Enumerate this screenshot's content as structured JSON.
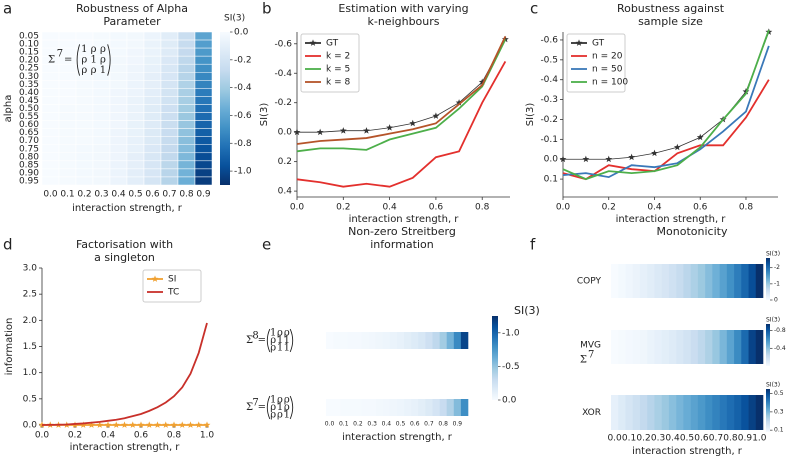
{
  "chart_data": [
    {
      "type": "heatmap",
      "panel": "a",
      "title": [
        "Robustness of Alpha",
        "Parameter"
      ],
      "xlabel": "interaction strength, r",
      "ylabel": "alpha",
      "categories": [
        "0.0",
        "0.1",
        "0.2",
        "0.3",
        "0.4",
        "0.5",
        "0.6",
        "0.7",
        "0.8",
        "0.9"
      ],
      "y_categories": [
        "0.05",
        "0.10",
        "0.15",
        "0.20",
        "0.25",
        "0.30",
        "0.35",
        "0.40",
        "0.45",
        "0.50",
        "0.55",
        "0.60",
        "0.65",
        "0.70",
        "0.75",
        "0.80",
        "0.85",
        "0.90",
        "0.95"
      ],
      "values": [
        [
          0,
          0,
          0,
          -0.01,
          -0.02,
          -0.03,
          -0.06,
          -0.12,
          -0.25,
          -0.6
        ],
        [
          0,
          0,
          0,
          -0.01,
          -0.02,
          -0.03,
          -0.07,
          -0.13,
          -0.27,
          -0.63
        ],
        [
          0,
          0,
          0,
          -0.01,
          -0.02,
          -0.04,
          -0.07,
          -0.14,
          -0.28,
          -0.65
        ],
        [
          0,
          0,
          0,
          -0.01,
          -0.03,
          -0.04,
          -0.08,
          -0.16,
          -0.3,
          -0.68
        ],
        [
          0,
          0,
          0,
          -0.01,
          -0.03,
          -0.05,
          -0.09,
          -0.17,
          -0.32,
          -0.7
        ],
        [
          0,
          0,
          -0.01,
          -0.02,
          -0.03,
          -0.05,
          -0.1,
          -0.18,
          -0.33,
          -0.73
        ],
        [
          0,
          0,
          -0.01,
          -0.02,
          -0.03,
          -0.06,
          -0.1,
          -0.19,
          -0.35,
          -0.75
        ],
        [
          0,
          0,
          -0.01,
          -0.02,
          -0.04,
          -0.06,
          -0.11,
          -0.2,
          -0.37,
          -0.78
        ],
        [
          0,
          0,
          -0.01,
          -0.02,
          -0.04,
          -0.07,
          -0.12,
          -0.21,
          -0.38,
          -0.8
        ],
        [
          0,
          -0.01,
          -0.01,
          -0.02,
          -0.04,
          -0.07,
          -0.13,
          -0.23,
          -0.4,
          -0.83
        ],
        [
          0,
          -0.01,
          -0.01,
          -0.02,
          -0.04,
          -0.07,
          -0.13,
          -0.24,
          -0.42,
          -0.85
        ],
        [
          0,
          -0.01,
          -0.01,
          -0.02,
          -0.04,
          -0.08,
          -0.14,
          -0.25,
          -0.43,
          -0.88
        ],
        [
          0,
          -0.01,
          -0.01,
          -0.02,
          -0.05,
          -0.08,
          -0.15,
          -0.26,
          -0.45,
          -0.9
        ],
        [
          0,
          -0.01,
          -0.01,
          -0.02,
          -0.05,
          -0.09,
          -0.15,
          -0.27,
          -0.47,
          -0.93
        ],
        [
          0,
          -0.01,
          -0.02,
          -0.03,
          -0.05,
          -0.09,
          -0.16,
          -0.28,
          -0.48,
          -0.95
        ],
        [
          0,
          -0.01,
          -0.02,
          -0.03,
          -0.05,
          -0.1,
          -0.17,
          -0.29,
          -0.5,
          -0.98
        ],
        [
          0,
          -0.01,
          -0.02,
          -0.03,
          -0.06,
          -0.1,
          -0.18,
          -0.31,
          -0.52,
          -1.0
        ],
        [
          0,
          -0.01,
          -0.02,
          -0.03,
          -0.06,
          -0.11,
          -0.18,
          -0.32,
          -0.53,
          -1.03
        ],
        [
          0,
          -0.01,
          -0.02,
          -0.03,
          -0.06,
          -0.11,
          -0.19,
          -0.33,
          -0.55,
          -1.05
        ]
      ],
      "clim": [
        0,
        -1.1
      ],
      "colorbar_dark": "bottom",
      "colorbar_label": "SI(3)",
      "colorbar_ticks": [
        {
          "value": 0,
          "label": "0.0"
        },
        -0.2,
        -0.4,
        -0.6,
        -0.8,
        {
          "value": -1,
          "label": "-1.0"
        }
      ],
      "annotation": {
        "symbol": "Σ",
        "sup": "7",
        "relation": "=",
        "rows": [
          [
            "1",
            "ρ",
            "ρ"
          ],
          [
            "ρ",
            "1",
            "ρ"
          ],
          [
            "ρ",
            "ρ",
            "1"
          ]
        ]
      }
    },
    {
      "type": "line",
      "panel": "b",
      "title": [
        "Estimation with varying",
        "k-neighbours"
      ],
      "xlabel": "interaction strength, r",
      "ylabel": "SI(3)",
      "x": [
        0,
        0.1,
        0.2,
        0.3,
        0.4,
        0.5,
        0.6,
        0.7,
        0.8,
        0.9
      ],
      "xlim": [
        0,
        0.92
      ],
      "ylim": [
        0.44,
        -0.68
      ],
      "xticks": [
        {
          "value": 0,
          "label": "0.0"
        },
        0.2,
        0.4,
        0.6,
        0.8
      ],
      "yticks": [
        -0.6,
        -0.4,
        -0.2,
        {
          "value": 0,
          "label": "0.0"
        },
        0.2,
        0.4
      ],
      "legend": "upper left",
      "series": [
        {
          "name": "GT",
          "color": "#333333",
          "marker": "star",
          "values": [
            0,
            0,
            -0.01,
            -0.01,
            -0.03,
            -0.06,
            -0.11,
            -0.2,
            -0.34,
            -0.63
          ]
        },
        {
          "name": "k = 2",
          "color": "#e3302d",
          "values": [
            0.32,
            0.34,
            0.37,
            0.35,
            0.37,
            0.31,
            0.17,
            0.13,
            -0.2,
            -0.48
          ]
        },
        {
          "name": "k = 5",
          "color": "#4daf4a",
          "values": [
            0.13,
            0.11,
            0.11,
            0.12,
            0.05,
            0.01,
            -0.03,
            -0.16,
            -0.31,
            -0.63
          ]
        },
        {
          "name": "k = 8",
          "color": "#b5542a",
          "values": [
            0.08,
            0.06,
            0.05,
            0.04,
            0.01,
            -0.02,
            -0.06,
            -0.19,
            -0.32,
            -0.65
          ]
        }
      ]
    },
    {
      "type": "line",
      "panel": "c",
      "title": [
        "Robustness against",
        "sample size"
      ],
      "xlabel": "interaction strength, r",
      "ylabel": "SI(3)",
      "x": [
        0,
        0.1,
        0.2,
        0.3,
        0.4,
        0.5,
        0.6,
        0.7,
        0.8,
        0.9
      ],
      "xlim": [
        0,
        0.94
      ],
      "ylim": [
        0.19,
        -0.64
      ],
      "xticks": [
        {
          "value": 0,
          "label": "0.0"
        },
        0.2,
        0.4,
        0.6,
        0.8
      ],
      "yticks": [
        -0.6,
        -0.5,
        -0.4,
        -0.3,
        -0.2,
        -0.1,
        {
          "value": 0,
          "label": "0.0"
        },
        0.1
      ],
      "legend": "upper left",
      "series": [
        {
          "name": "GT",
          "color": "#333333",
          "marker": "star",
          "values": [
            0,
            0,
            0,
            -0.01,
            -0.03,
            -0.06,
            -0.11,
            -0.2,
            -0.34,
            -0.64
          ]
        },
        {
          "name": "n = 20",
          "color": "#e3302d",
          "values": [
            0.07,
            0.1,
            0.03,
            0.05,
            0.06,
            -0.03,
            -0.07,
            -0.07,
            -0.21,
            -0.4
          ]
        },
        {
          "name": "n = 50",
          "color": "#3a78b8",
          "values": [
            0.08,
            0.07,
            0.09,
            0.03,
            0.04,
            0.02,
            -0.05,
            -0.14,
            -0.24,
            -0.57
          ]
        },
        {
          "name": "n = 100",
          "color": "#4daf4a",
          "values": [
            0.05,
            0.1,
            0.06,
            0.07,
            0.06,
            0.03,
            -0.06,
            -0.2,
            -0.33,
            -0.65
          ]
        }
      ]
    },
    {
      "type": "line",
      "panel": "d",
      "title": [
        "Factorisation with",
        "a singleton"
      ],
      "xlabel": "interaction strength, r",
      "ylabel": "information",
      "x": [
        0,
        0.05,
        0.1,
        0.15,
        0.2,
        0.25,
        0.3,
        0.35,
        0.4,
        0.45,
        0.5,
        0.55,
        0.6,
        0.65,
        0.7,
        0.75,
        0.8,
        0.85,
        0.9,
        0.95,
        1
      ],
      "xlim": [
        0,
        1
      ],
      "ylim": [
        0,
        3
      ],
      "xticks": [
        {
          "value": 0,
          "label": "0.0"
        },
        0.2,
        0.4,
        0.6,
        0.8,
        {
          "value": 1,
          "label": "1.0"
        }
      ],
      "yticks": [
        {
          "value": 0,
          "label": "0.0"
        },
        0.5,
        {
          "value": 1,
          "label": "1.0"
        },
        1.5,
        {
          "value": 2,
          "label": "2.0"
        },
        2.5,
        {
          "value": 3,
          "label": "3.0"
        }
      ],
      "legend": "upper right",
      "series": [
        {
          "name": "SI",
          "color": "#f0a030",
          "marker": "star",
          "values": [
            0,
            0,
            0,
            0,
            0,
            0,
            0,
            0,
            0,
            0,
            0,
            0,
            0,
            0,
            0,
            0,
            0,
            0,
            0,
            0,
            0
          ]
        },
        {
          "name": "TC",
          "color": "#c8302a",
          "values": [
            0,
            0.002,
            0.005,
            0.01,
            0.02,
            0.03,
            0.045,
            0.06,
            0.08,
            0.1,
            0.13,
            0.17,
            0.21,
            0.27,
            0.34,
            0.43,
            0.55,
            0.72,
            0.98,
            1.38,
            1.95
          ]
        }
      ]
    },
    {
      "type": "strips",
      "panel": "e",
      "title": [
        "Non-zero Streitberg",
        "information"
      ],
      "xlabel": "interaction strength, r",
      "categories": [
        "0.0",
        null,
        "0.1",
        null,
        "0.2",
        null,
        "0.3",
        null,
        "0.4",
        null,
        "0.5",
        null,
        "0.6",
        null,
        "0.7",
        null,
        "0.8",
        null,
        "0.9",
        null
      ],
      "clim": [
        0,
        -1.25
      ],
      "colorbar_dark": "top",
      "colorbar_label": "SI(3)",
      "colorbar_ticks": [
        {
          "value": -1,
          "label": "-1.0"
        },
        -0.5,
        {
          "value": 0,
          "label": "0.0"
        }
      ],
      "rows": [
        {
          "matrix": {
            "symbol": "Σ",
            "sup": "8",
            "relation": "=",
            "rows": [
              [
                "1",
                "ρ",
                "ρ"
              ],
              [
                "ρ",
                "1",
                "1"
              ],
              [
                "ρ",
                "1",
                "1"
              ]
            ]
          },
          "values": [
            0,
            -0.01,
            -0.01,
            -0.02,
            -0.02,
            -0.03,
            -0.04,
            -0.05,
            -0.06,
            -0.08,
            -0.1,
            -0.13,
            -0.16,
            -0.2,
            -0.26,
            -0.34,
            -0.45,
            -0.6,
            -0.82,
            -1.15
          ]
        },
        {
          "matrix": {
            "symbol": "Σ",
            "sup": "7",
            "relation": "=",
            "rows": [
              [
                "1",
                "ρ",
                "ρ"
              ],
              [
                "ρ",
                "1",
                "ρ"
              ],
              [
                "ρ",
                "ρ",
                "1"
              ]
            ]
          },
          "values": [
            0,
            0,
            -0.01,
            -0.01,
            -0.01,
            -0.02,
            -0.02,
            -0.03,
            -0.04,
            -0.05,
            -0.06,
            -0.08,
            -0.1,
            -0.13,
            -0.17,
            -0.22,
            -0.3,
            -0.4,
            -0.55,
            -0.8
          ]
        }
      ]
    },
    {
      "type": "strips",
      "panel": "f",
      "title": [
        "Monotonicity"
      ],
      "xlabel": "interaction strength, r",
      "categories": [
        "0.0",
        null,
        "0.1",
        null,
        "0.2",
        null,
        "0.3",
        null,
        "0.4",
        null,
        "0.5",
        null,
        "0.6",
        null,
        "0.7",
        null,
        "0.8",
        null,
        "0.9",
        null,
        "1.0"
      ],
      "rows": [
        {
          "label": "COPY",
          "clim": [
            0,
            -2.6
          ],
          "colorbar_dark": "top",
          "colorbar_label": "SI(3)",
          "colorbar_ticks": [
            -2,
            -1,
            0
          ],
          "values": [
            0,
            -0.05,
            -0.1,
            -0.16,
            -0.22,
            -0.29,
            -0.36,
            -0.44,
            -0.53,
            -0.63,
            -0.74,
            -0.86,
            -0.99,
            -1.13,
            -1.28,
            -1.45,
            -1.63,
            -1.83,
            -2.05,
            -2.3,
            -2.6
          ]
        },
        {
          "label": "MVG",
          "sublabel": {
            "symbol": "Σ",
            "sup": "7"
          },
          "clim": [
            0,
            -0.95
          ],
          "colorbar_dark": "top",
          "colorbar_label": "SI(3)",
          "colorbar_ticks": [
            -0.8,
            -0.4
          ],
          "values": [
            0,
            -0.01,
            -0.02,
            -0.03,
            -0.04,
            -0.06,
            -0.08,
            -0.1,
            -0.12,
            -0.15,
            -0.18,
            -0.22,
            -0.26,
            -0.31,
            -0.37,
            -0.44,
            -0.52,
            -0.62,
            -0.74,
            -0.88,
            -1.0
          ]
        },
        {
          "label": "XOR",
          "clim": [
            0.08,
            0.55
          ],
          "colorbar_dark": "top",
          "colorbar_label": "SI(3)",
          "colorbar_ticks": [
            0.5,
            0.3,
            0.1
          ],
          "values": [
            0.12,
            0.14,
            0.16,
            0.18,
            0.2,
            0.22,
            0.24,
            0.26,
            0.28,
            0.3,
            0.32,
            0.34,
            0.36,
            0.38,
            0.4,
            0.42,
            0.44,
            0.46,
            0.49,
            0.52,
            0.55
          ]
        }
      ]
    }
  ]
}
